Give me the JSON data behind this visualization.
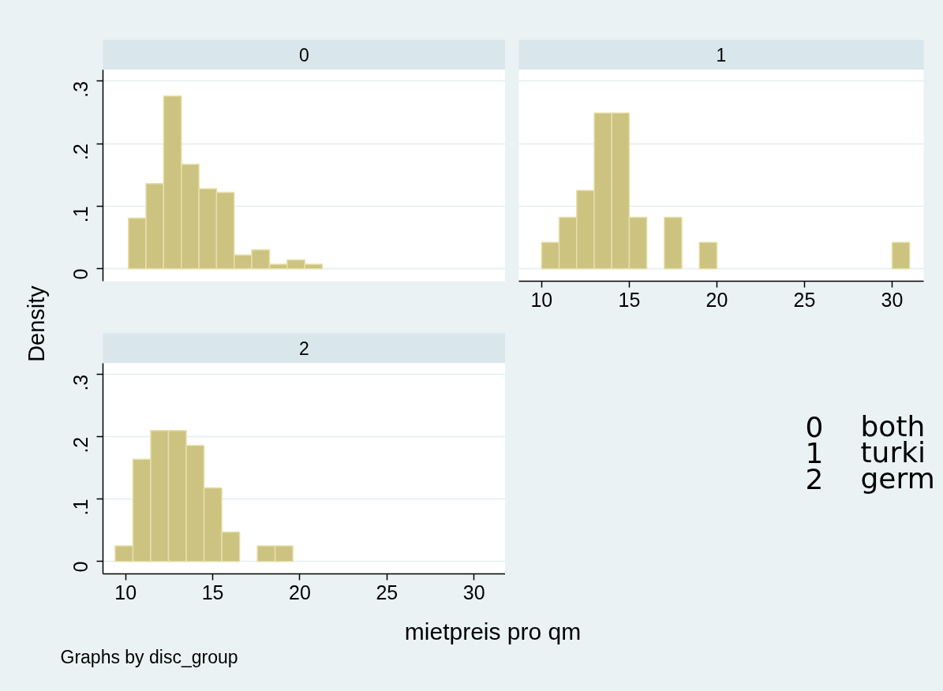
{
  "chart_data": [
    {
      "type": "histogram",
      "title": "0",
      "bins": [
        10.16,
        11.17,
        12.18,
        13.2,
        14.21,
        15.22,
        16.23,
        17.24,
        18.26,
        19.27,
        20.28,
        21.29
      ],
      "values": [
        0.081,
        0.136,
        0.276,
        0.167,
        0.128,
        0.122,
        0.022,
        0.03,
        0.007,
        0.014,
        0.007
      ],
      "color": "#ccc381",
      "xlim": [
        8.7,
        31.8
      ],
      "ylim": [
        -0.02,
        0.318
      ],
      "yticks": [
        0,
        {
          "value": 0.1,
          "label": ".1"
        },
        {
          "value": 0.2,
          "label": ".2"
        },
        {
          "value": 0.3,
          "label": ".3"
        }
      ],
      "grid": "y",
      "tick_labels": "y"
    },
    {
      "type": "histogram",
      "title": "1",
      "bins": [
        10,
        11,
        12,
        13,
        14,
        15,
        16,
        17,
        18,
        19,
        20,
        21,
        22,
        23,
        24,
        25,
        26,
        27,
        28,
        29,
        30,
        31
      ],
      "values": [
        0.042,
        0.082,
        0.125,
        0.249,
        0.249,
        0.082,
        0,
        0.082,
        0,
        0.042,
        0,
        0,
        0,
        0,
        0,
        0,
        0,
        0,
        0,
        0,
        0.042
      ],
      "color": "#ccc381",
      "xlim": [
        8.7,
        31.8
      ],
      "ylim": [
        -0.02,
        0.318
      ],
      "xticks": [
        10,
        15,
        20,
        25,
        30
      ],
      "yticks": [
        0,
        0.1,
        0.2,
        0.3
      ],
      "grid": "y",
      "tick_labels": "x"
    },
    {
      "type": "histogram",
      "title": "2",
      "bins": [
        9.4,
        10.42,
        11.44,
        12.46,
        13.48,
        14.5,
        15.52,
        16.54,
        17.56,
        18.58,
        19.6
      ],
      "values": [
        0.025,
        0.164,
        0.21,
        0.21,
        0.186,
        0.118,
        0.047,
        0,
        0.025,
        0.025
      ],
      "color": "#ccc381",
      "xlim": [
        8.7,
        31.8
      ],
      "ylim": [
        -0.02,
        0.318
      ],
      "xticks": [
        10,
        15,
        20,
        25,
        30
      ],
      "yticks": [
        0,
        {
          "value": 0.1,
          "label": ".1"
        },
        {
          "value": 0.2,
          "label": ".2"
        },
        {
          "value": 0.3,
          "label": ".3"
        }
      ],
      "grid": "y",
      "xlabel": "mietpreis pro qm",
      "ylabel": "Density",
      "annotations": [
        "Graphs by disc_group"
      ]
    },
    {
      "type": "other",
      "annotations": [
        "0",
        "both",
        "1",
        "turki",
        "2",
        "germ"
      ]
    }
  ]
}
